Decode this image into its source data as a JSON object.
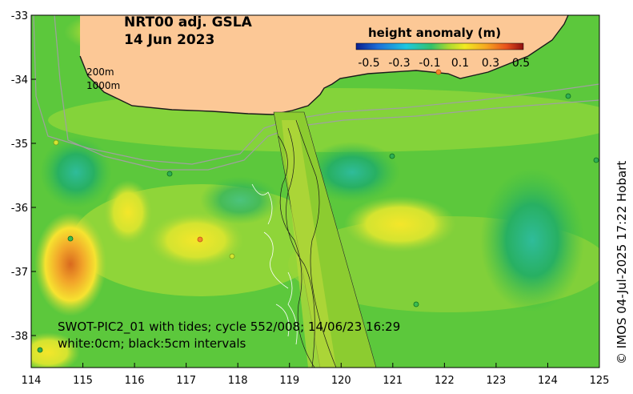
{
  "title": {
    "line1": "NRT00 adj. GSLA",
    "line2": "14 Jun 2023"
  },
  "colorbar": {
    "title": "height anomaly (m)",
    "labels": [
      "-0.5",
      "-0.3",
      "-0.1",
      "0.1",
      "0.3",
      "0.5"
    ],
    "colors": [
      "#0a1f8f",
      "#1f6fd8",
      "#1fc7e0",
      "#34c26a",
      "#a8d930",
      "#f2ea20",
      "#f6a520",
      "#e8501c",
      "#8f1010"
    ]
  },
  "isobaths": {
    "label_200": "200m",
    "label_1000": "1000m"
  },
  "axes": {
    "x_ticks": [
      "114",
      "115",
      "116",
      "117",
      "118",
      "119",
      "120",
      "121",
      "122",
      "123",
      "124",
      "125"
    ],
    "y_ticks": [
      "-33",
      "-34",
      "-35",
      "-36",
      "-37",
      "-38"
    ],
    "x_range": [
      114,
      125
    ],
    "y_range": [
      -38.5,
      -33
    ]
  },
  "caption": {
    "line1": "SWOT-PIC2_01 with tides; cycle 552/008; 14/06/23 16:29",
    "line2": "white:0cm; black:5cm intervals"
  },
  "credit": "© IMOS 04-Jul-2025 17:22 Hobart",
  "colors": {
    "land": "#fcc896",
    "ocean_base": "#5cc83c",
    "swath": "#8ccc30"
  }
}
